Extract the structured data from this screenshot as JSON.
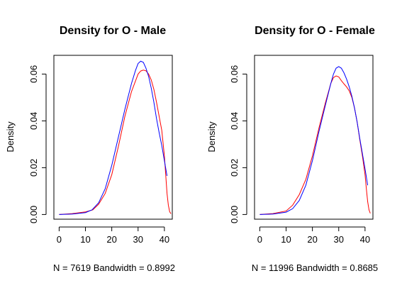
{
  "chart_data": [
    {
      "type": "line",
      "title": "Density for O - Male",
      "xlabel": "N = 7619   Bandwidth = 0.8992",
      "ylabel": "Density",
      "xlim": [
        -2,
        43
      ],
      "ylim": [
        -0.002,
        0.068
      ],
      "xticks": [
        0,
        10,
        20,
        30,
        40
      ],
      "yticks": [
        0.0,
        0.02,
        0.04,
        0.06
      ],
      "ytick_labels": [
        "0.00",
        "0.02",
        "0.04",
        "0.06"
      ],
      "grid": false,
      "series": [
        {
          "color": "#ff0000",
          "x": [
            0,
            5,
            10,
            12.8,
            15,
            17.5,
            20,
            22.5,
            25,
            27.5,
            30,
            31,
            32,
            33,
            34,
            35,
            36,
            37,
            38,
            39,
            40,
            40.5,
            41,
            41.5,
            42,
            42.5
          ],
          "y": [
            0.0,
            0.0004,
            0.0011,
            0.002,
            0.0044,
            0.009,
            0.017,
            0.029,
            0.042,
            0.0525,
            0.06,
            0.0613,
            0.0617,
            0.0614,
            0.06,
            0.0575,
            0.0535,
            0.048,
            0.042,
            0.036,
            0.025,
            0.017,
            0.009,
            0.004,
            0.0012,
            0.0003
          ]
        },
        {
          "color": "#0000ff",
          "x": [
            0,
            5,
            10,
            12.5,
            15,
            17.5,
            20,
            22.5,
            25,
            27.5,
            29,
            30,
            31,
            32,
            33,
            34,
            35,
            36,
            37,
            38,
            39,
            40,
            41
          ],
          "y": [
            0.0,
            0.0002,
            0.0008,
            0.002,
            0.005,
            0.011,
            0.021,
            0.033,
            0.045,
            0.056,
            0.0615,
            0.0645,
            0.0655,
            0.065,
            0.0625,
            0.059,
            0.054,
            0.048,
            0.041,
            0.035,
            0.0295,
            0.023,
            0.0165
          ]
        }
      ]
    },
    {
      "type": "line",
      "title": "Density for O - Female",
      "xlabel": "N = 11996   Bandwidth = 0.8685",
      "ylabel": "Density",
      "xlim": [
        -2,
        43
      ],
      "ylim": [
        -0.002,
        0.068
      ],
      "xticks": [
        0,
        10,
        20,
        30,
        40
      ],
      "yticks": [
        0.0,
        0.02,
        0.04,
        0.06
      ],
      "ytick_labels": [
        "0.00",
        "0.02",
        "0.04",
        "0.06"
      ],
      "grid": false,
      "series": [
        {
          "color": "#ff0000",
          "x": [
            0,
            5,
            10,
            12.5,
            15,
            17.5,
            20,
            22.5,
            25,
            27,
            28,
            29,
            30,
            31,
            32,
            33,
            34,
            35,
            36,
            37,
            38,
            39,
            40,
            40.5,
            41,
            41.5,
            42
          ],
          "y": [
            0.0,
            0.0004,
            0.0015,
            0.004,
            0.0085,
            0.015,
            0.025,
            0.037,
            0.048,
            0.056,
            0.0585,
            0.0592,
            0.0588,
            0.0572,
            0.0558,
            0.0545,
            0.0528,
            0.05,
            0.0455,
            0.0395,
            0.032,
            0.025,
            0.017,
            0.011,
            0.0055,
            0.002,
            0.0005
          ]
        },
        {
          "color": "#0000ff",
          "x": [
            0,
            5,
            10,
            12.5,
            15,
            17.5,
            20,
            22.5,
            25,
            27,
            28,
            29,
            30,
            31,
            32,
            33,
            34,
            35,
            36,
            37,
            38,
            39,
            40,
            41
          ],
          "y": [
            0.0,
            0.0002,
            0.001,
            0.0025,
            0.006,
            0.0125,
            0.023,
            0.0355,
            0.047,
            0.056,
            0.06,
            0.0625,
            0.0632,
            0.0625,
            0.0605,
            0.0578,
            0.0545,
            0.0505,
            0.0455,
            0.0395,
            0.0325,
            0.026,
            0.0195,
            0.0125
          ]
        }
      ]
    }
  ]
}
